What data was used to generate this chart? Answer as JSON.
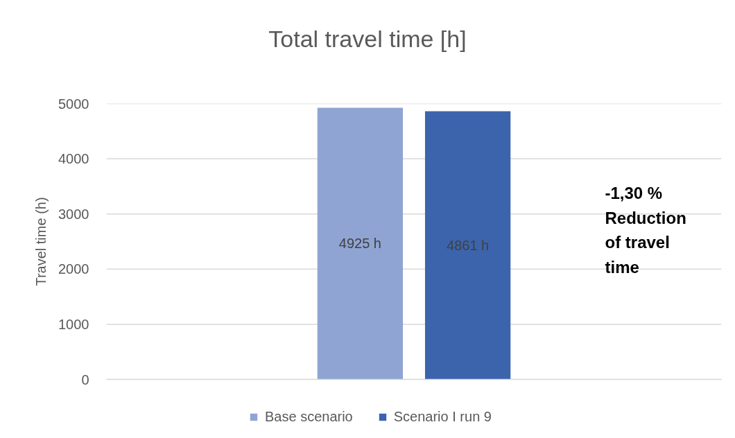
{
  "chart_data": {
    "type": "bar",
    "title": "Total travel time [h]",
    "ylabel": "Travel time (h)",
    "categories": [
      null
    ],
    "series": [
      {
        "name": "Base scenario",
        "color": "#8fa4d3",
        "values": [
          4925
        ],
        "value_labels": [
          "4925 h"
        ]
      },
      {
        "name": "Scenario I run 9",
        "color": "#3c64ad",
        "values": [
          4861
        ],
        "value_labels": [
          "4861 h"
        ]
      }
    ],
    "ylim": [
      0,
      5000
    ],
    "yticks": [
      0,
      1000,
      2000,
      3000,
      4000,
      5000
    ],
    "grid": "y",
    "legend": "bottom",
    "annotations": [
      "-1,30 % Reduction of travel time"
    ]
  }
}
